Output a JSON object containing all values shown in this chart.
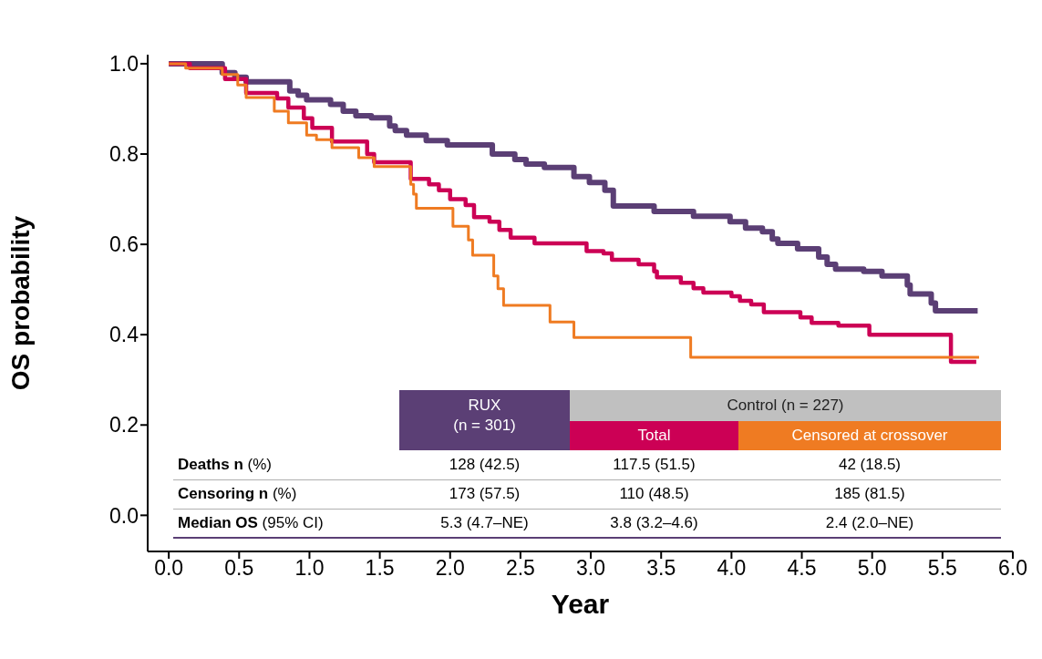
{
  "chart_data": {
    "type": "step",
    "xlabel": "Year",
    "ylabel": "OS probability",
    "xlim": [
      -0.15,
      6.0
    ],
    "xticks": [
      {
        "value": 0,
        "label": "0.0"
      },
      0.5,
      {
        "value": 1,
        "label": "1.0"
      },
      1.5,
      {
        "value": 2,
        "label": "2.0"
      },
      2.5,
      {
        "value": 3,
        "label": "3.0"
      },
      3.5,
      {
        "value": 4,
        "label": "4.0"
      },
      4.5,
      {
        "value": 5,
        "label": "5.0"
      },
      5.5,
      {
        "value": 6,
        "label": "6.0"
      }
    ],
    "ylim": [
      -0.08,
      1.02
    ],
    "yticks": [
      {
        "value": 0,
        "label": "0.0"
      },
      0.2,
      0.4,
      0.6,
      0.8,
      {
        "value": 1,
        "label": "1.0"
      }
    ],
    "grid": false,
    "legend": "bottom right",
    "marker": "none",
    "line_style": "solid",
    "series": [
      {
        "name": "RUX",
        "color": "#5b3f75",
        "x": [
          0,
          0.38,
          0.47,
          0.55,
          0.86,
          0.92,
          0.98,
          1.15,
          1.24,
          1.33,
          1.44,
          1.57,
          1.61,
          1.69,
          1.83,
          1.98,
          2.3,
          2.46,
          2.54,
          2.67,
          2.88,
          2.99,
          3.1,
          3.16,
          3.45,
          3.73,
          3.99,
          4.1,
          4.22,
          4.29,
          4.33,
          4.47,
          4.62,
          4.68,
          4.74,
          4.94,
          5.07,
          5.25,
          5.27,
          5.42,
          5.45,
          5.75
        ],
        "values": [
          1.0,
          0.98,
          0.97,
          0.96,
          0.94,
          0.93,
          0.92,
          0.91,
          0.895,
          0.885,
          0.88,
          0.862,
          0.852,
          0.842,
          0.83,
          0.82,
          0.8,
          0.788,
          0.778,
          0.77,
          0.75,
          0.737,
          0.72,
          0.685,
          0.673,
          0.662,
          0.65,
          0.636,
          0.628,
          0.612,
          0.602,
          0.59,
          0.572,
          0.556,
          0.545,
          0.54,
          0.53,
          0.51,
          0.49,
          0.47,
          0.453,
          0.453
        ]
      },
      {
        "name": "Total",
        "color": "#cc0055",
        "x": [
          0,
          0.15,
          0.4,
          0.55,
          0.77,
          0.85,
          0.96,
          1.02,
          1.16,
          1.41,
          1.46,
          1.72,
          1.85,
          1.92,
          2.0,
          2.11,
          2.17,
          2.28,
          2.35,
          2.43,
          2.6,
          2.97,
          3.09,
          3.15,
          3.34,
          3.45,
          3.47,
          3.64,
          3.73,
          3.8,
          4.0,
          4.06,
          4.14,
          4.23,
          4.49,
          4.57,
          4.76,
          4.98,
          5.56,
          5.74
        ],
        "values": [
          1.0,
          0.99,
          0.966,
          0.935,
          0.923,
          0.903,
          0.879,
          0.858,
          0.828,
          0.8,
          0.782,
          0.745,
          0.733,
          0.72,
          0.7,
          0.687,
          0.66,
          0.65,
          0.632,
          0.615,
          0.602,
          0.585,
          0.58,
          0.566,
          0.556,
          0.54,
          0.527,
          0.515,
          0.503,
          0.493,
          0.485,
          0.475,
          0.467,
          0.45,
          0.438,
          0.426,
          0.42,
          0.4,
          0.34,
          0.34
        ]
      },
      {
        "name": "Censored at crossover",
        "color": "#ef7b22",
        "x": [
          0,
          0.12,
          0.38,
          0.49,
          0.55,
          0.75,
          0.85,
          0.98,
          1.05,
          1.16,
          1.35,
          1.46,
          1.72,
          1.74,
          1.76,
          2.02,
          2.13,
          2.16,
          2.31,
          2.34,
          2.38,
          2.71,
          2.88,
          3.71,
          5.76
        ],
        "values": [
          1.0,
          0.99,
          0.976,
          0.953,
          0.925,
          0.895,
          0.869,
          0.842,
          0.832,
          0.814,
          0.792,
          0.772,
          0.733,
          0.711,
          0.68,
          0.64,
          0.61,
          0.576,
          0.53,
          0.502,
          0.465,
          0.428,
          0.394,
          0.35,
          0.35
        ]
      }
    ],
    "annotations": [
      "(n = 301)",
      "Control (n = 227)",
      "Deaths n (%)",
      "128 (42.5)",
      "117.5 (51.5)",
      "42 (18.5)",
      "Censoring n (%)",
      "173 (57.5)",
      "110 (48.5)",
      "185 (81.5)",
      "Median OS (95% CI)",
      "5.3 (4.7–NE)",
      "3.8 (3.2–4.6)",
      "2.4 (2.0–NE)"
    ]
  }
}
